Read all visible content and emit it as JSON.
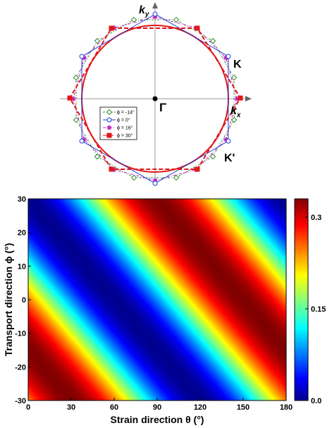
{
  "top_diagram": {
    "labels": {
      "ky": "k",
      "ky_sub": "y",
      "kx": "k",
      "kx_sub": "x",
      "gamma": "Γ",
      "K": "K",
      "Kprime": "K'"
    },
    "legend": [
      {
        "text": "ϕ = -14°",
        "color": "#2e8b2e",
        "marker": "diamond",
        "dash": "3,2,1,2"
      },
      {
        "text": "ϕ = 0°",
        "color": "#1f3fd6",
        "marker": "circle",
        "dash": ""
      },
      {
        "text": "ϕ = 16°",
        "color": "#c022c0",
        "marker": "star",
        "dash": "4,2,1,2"
      },
      {
        "text": "ϕ = 30°",
        "color": "#e01818",
        "marker": "square",
        "dash": "6,3"
      }
    ]
  },
  "chart_data": {
    "type": "heatmap",
    "xlabel": "Strain direction θ (°)",
    "ylabel": "Transport direction ϕ (°)",
    "xlim": [
      0,
      180
    ],
    "ylim": [
      -30,
      30
    ],
    "x_ticks": [
      "0",
      "30",
      "60",
      "90",
      "120",
      "150",
      "180"
    ],
    "y_ticks": [
      "-30",
      "-20",
      "-10",
      "0",
      "10",
      "20",
      "30"
    ],
    "colorbar": {
      "min": 0.0,
      "max": 0.33,
      "tick_labels": [
        "0.0",
        "0.15",
        "0.3"
      ]
    },
    "pattern": "diagonal bands; value ≈ 0.165·(1 − cos(2(θ + 2ϕ − 60°)))"
  }
}
